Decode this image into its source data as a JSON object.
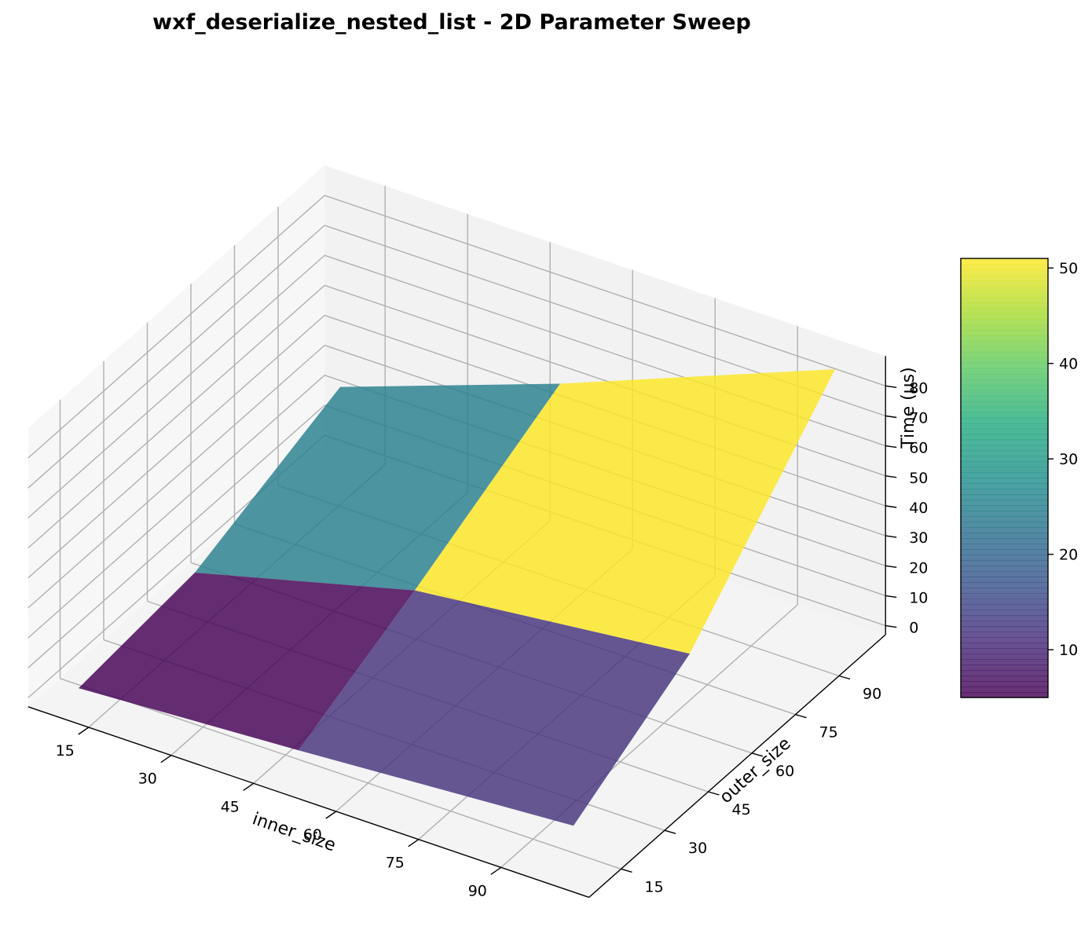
{
  "chart_data": {
    "type": "surface3d",
    "title": "wxf_deserialize_nested_list - 2D Parameter Sweep",
    "xlabel": "inner_size",
    "ylabel": "outer_size",
    "zlabel": "Time (μs)",
    "x": [
      10,
      50,
      100
    ],
    "y": [
      10,
      50,
      100
    ],
    "z": [
      [
        1.8,
        6.0,
        12.0
      ],
      [
        6.0,
        25.0,
        35.0
      ],
      [
        25.0,
        51.0,
        87.0
      ]
    ],
    "face_values": [
      [
        4.0,
        12.0
      ],
      [
        25.0,
        51.0
      ]
    ],
    "xticks": [
      15,
      30,
      45,
      60,
      75,
      90
    ],
    "yticks": [
      15,
      30,
      45,
      60,
      75,
      90
    ],
    "zticks": [
      0,
      10,
      20,
      30,
      40,
      50,
      60,
      70,
      80
    ],
    "zlim": [
      0,
      87
    ],
    "colormap": "viridis",
    "colorbar": {
      "range": [
        5,
        51
      ],
      "ticks": [
        10,
        20,
        30,
        40,
        50
      ]
    },
    "grid": true
  }
}
